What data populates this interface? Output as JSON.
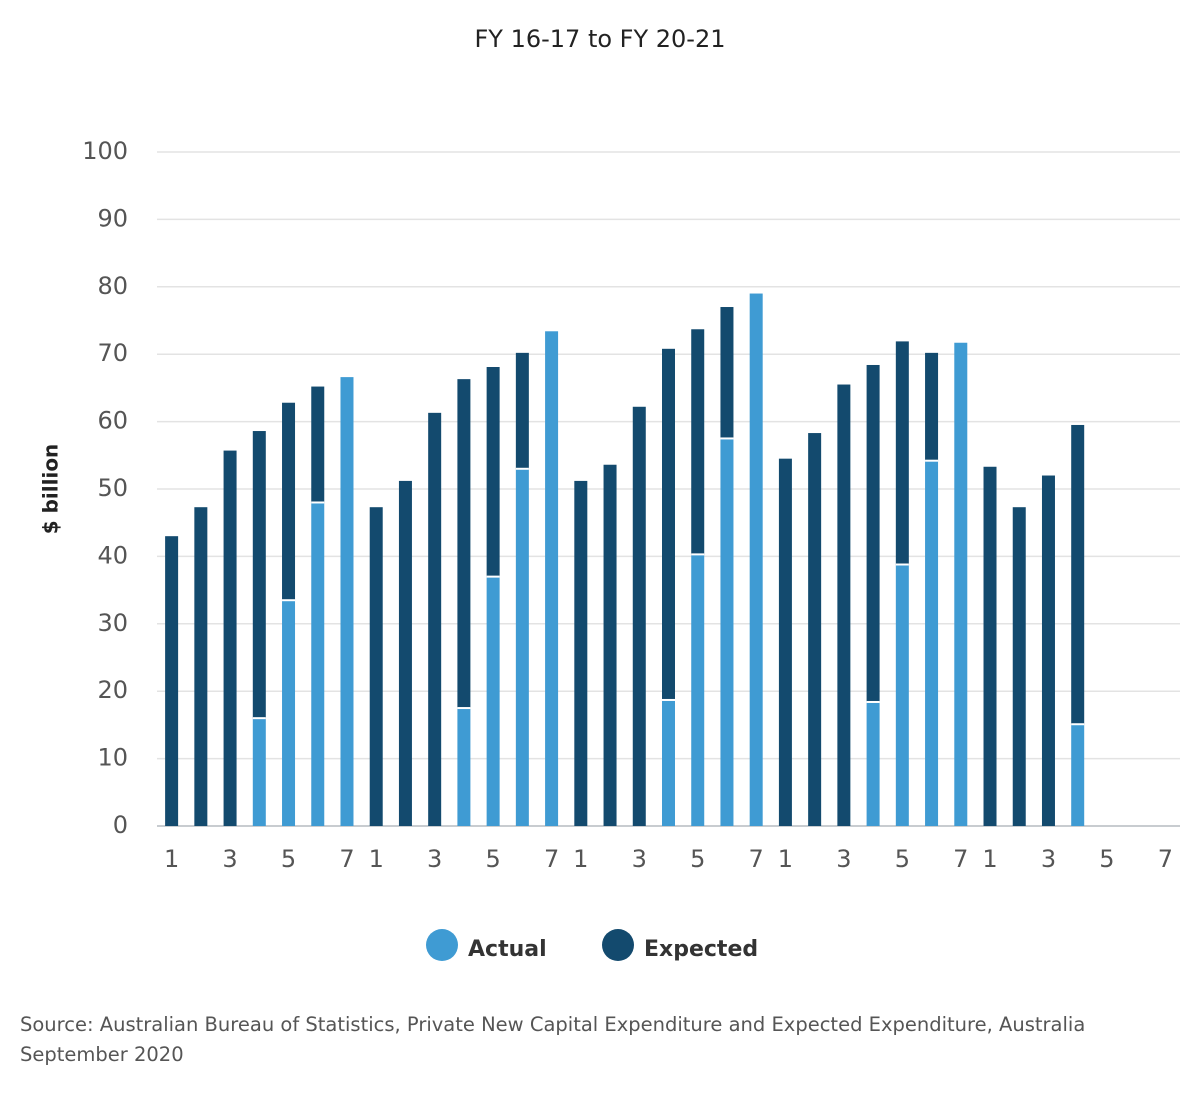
{
  "chart_data": {
    "type": "stacked_bar",
    "title": "FY 16-17 to FY 20-21",
    "y_label": "$ billion",
    "categories": [
      "1",
      null,
      "3",
      null,
      "5",
      null,
      "7",
      "1",
      null,
      "3",
      null,
      "5",
      null,
      "7",
      "1",
      null,
      "3",
      null,
      "5",
      null,
      "7",
      "1",
      null,
      "3",
      null,
      "5",
      null,
      "7",
      "1",
      null,
      "3",
      null,
      "5",
      null,
      "7"
    ],
    "series": [
      {
        "name": "Actual",
        "color": "#3f9bd3",
        "values": [
          null,
          null,
          null,
          16,
          33.5,
          48,
          66.6,
          null,
          null,
          null,
          17.5,
          37,
          53,
          73.4,
          null,
          null,
          null,
          18.7,
          40.3,
          57.5,
          79,
          null,
          null,
          null,
          18.4,
          38.8,
          54.2,
          71.7,
          null,
          null,
          null,
          15.1,
          null,
          null,
          null
        ]
      },
      {
        "name": "Expected",
        "color": "#134a6e",
        "values": [
          43,
          47.3,
          55.7,
          42.6,
          29.3,
          17.2,
          null,
          47.3,
          51.2,
          61.3,
          48.8,
          31.1,
          17.2,
          null,
          51.2,
          53.6,
          62.2,
          52.1,
          33.4,
          19.5,
          null,
          54.5,
          58.3,
          65.5,
          50,
          33.1,
          16,
          null,
          53.3,
          47.3,
          52,
          44.4,
          null,
          null,
          null
        ]
      }
    ],
    "ylim": [
      0,
      100
    ],
    "yticks": [
      0,
      10,
      20,
      30,
      40,
      50,
      60,
      70,
      80,
      90,
      100
    ],
    "grid": true,
    "legend": "bottom",
    "source": "Source: Australian Bureau of Statistics, Private New Capital Expenditure and Expected Expenditure, Australia September 2020"
  }
}
